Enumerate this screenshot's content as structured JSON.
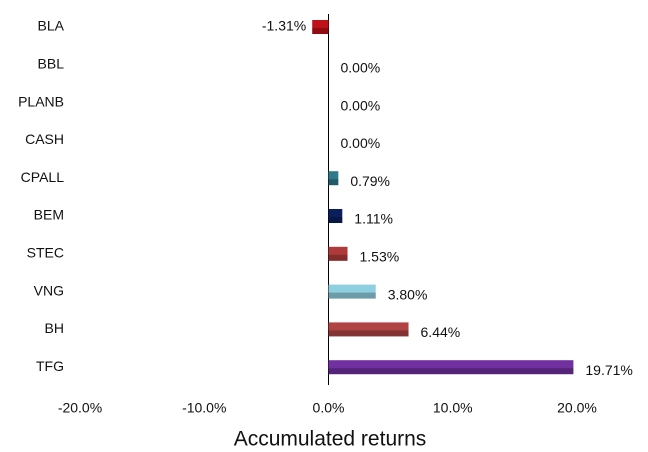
{
  "chart_data": {
    "type": "bar",
    "orientation": "horizontal",
    "categories": [
      "BLA",
      "BBL",
      "PLANB",
      "CASH",
      "CPALL",
      "BEM",
      "STEC",
      "VNG",
      "BH",
      "TFG"
    ],
    "values": [
      -1.31,
      0,
      0,
      0,
      0.79,
      1.11,
      1.53,
      3.8,
      6.44,
      19.71
    ],
    "value_labels": [
      "-1.31%",
      "0.00%",
      "0.00%",
      "0.00%",
      "0.79%",
      "1.11%",
      "1.53%",
      "3.80%",
      "6.44%",
      "19.71%"
    ],
    "colors": [
      "#c0101a",
      "#888888",
      "#888888",
      "#888888",
      "#2e7a8a",
      "#0a1f5c",
      "#b03a3a",
      "#8fd0e0",
      "#b04444",
      "#7030a0"
    ],
    "xlabel": "Accumulated returns",
    "xlim": [
      -20,
      20
    ],
    "xticks": [
      {
        "value": -20,
        "label": "-20.0%"
      },
      {
        "value": -10,
        "label": "-10.0%"
      },
      {
        "value": 0,
        "label": "0.0%"
      },
      {
        "value": 10,
        "label": "10.0%"
      },
      {
        "value": 20,
        "label": "20.0%"
      }
    ]
  }
}
